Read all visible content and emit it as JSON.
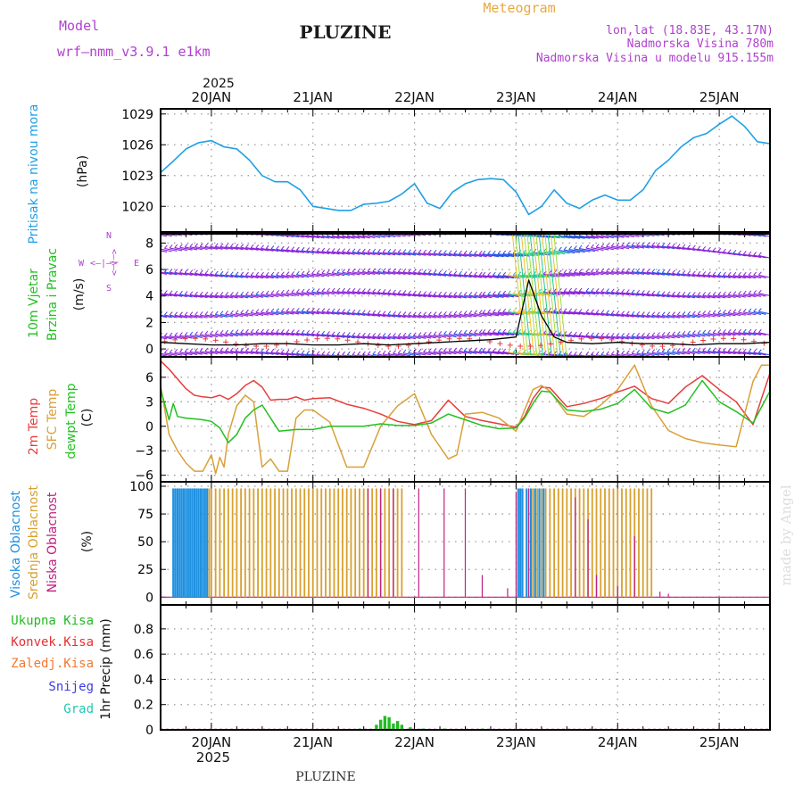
{
  "header": {
    "model_label": "Model",
    "model_name": "wrf–nmm_v3.9.1 e1km",
    "station": "PLUZINE",
    "app_title": "Meteogram",
    "lonlat": "lon,lat (18.83E, 43.17N)",
    "altitude": "Nadmorska Visina 780m",
    "altitude_model": "Nadmorska Visina u modelu 915.155m"
  },
  "footer": {
    "station": "PLUZINE",
    "credit": "made by Angel"
  },
  "colors": {
    "pressure": "#1ea0e6",
    "temp": "#e83c3c",
    "sfc": "#d8a038",
    "dewpt": "#22c022",
    "wind_low": "#8a22d8",
    "wind_mid": "#2850e8",
    "wind_high": "#20c890",
    "cloud_high": "#1e90e0",
    "cloud_mid": "#d8a030",
    "cloud_low": "#c02080",
    "precip_total": "#22bb22",
    "precip_conv": "#e83030",
    "precip_frozen": "#f07830",
    "snow": "#3c3ce0",
    "hail": "#22c8b0"
  },
  "chart_data": [
    {
      "type": "line",
      "panel": "pressure",
      "ylabel_1": "Pritisak na nivou mora",
      "ylabel_2": "(hPa)",
      "ylim": [
        1017.5,
        1029.5
      ],
      "yticks": [
        1020,
        1023,
        1026,
        1029
      ],
      "grid": true,
      "top_axis": {
        "year": "2025",
        "labels": [
          "20JAN",
          "21JAN",
          "22JAN",
          "23JAN",
          "24JAN",
          "25JAN"
        ]
      },
      "series": [
        {
          "x": [
            0,
            3,
            6,
            9,
            12,
            15,
            18,
            21,
            24,
            27,
            30,
            33,
            36,
            39,
            42,
            45,
            48,
            51,
            54,
            57,
            60,
            63,
            66,
            69,
            72,
            75,
            78,
            81,
            84,
            87,
            90,
            93,
            96,
            99,
            102,
            105,
            108,
            111,
            114,
            117,
            120,
            123,
            126,
            129,
            132,
            135,
            138,
            141,
            144
          ],
          "values": [
            1023.3,
            1024.4,
            1025.6,
            1026.2,
            1026.4,
            1025.8,
            1025.6,
            1024.5,
            1023,
            1022.4,
            1022.4,
            1021.6,
            1020,
            1019.8,
            1019.6,
            1019.6,
            1020.2,
            1020.3,
            1020.5,
            1021.2,
            1022.2,
            1020.3,
            1019.8,
            1021.4,
            1022.2,
            1022.6,
            1022.7,
            1022.6,
            1021.4,
            1019.2,
            1020,
            1021.6,
            1020.3,
            1019.8,
            1020.6,
            1021.1,
            1020.6,
            1020.6,
            1021.6,
            1023.5,
            1024.5,
            1025.8,
            1026.7,
            1027.1,
            1028,
            1028.8,
            1027.8,
            1026.3,
            1026.1
          ]
        }
      ]
    },
    {
      "type": "line",
      "panel": "wind",
      "ylabel_1": "10m Vjetar",
      "ylabel_2": "Brzina i Pravac",
      "ylabel_3": "(m/s)",
      "direction_key": [
        "W",
        "<–|–>",
        "E",
        "N",
        "S"
      ],
      "ylim": [
        -0.6,
        8.7
      ],
      "yticks": [
        0,
        2,
        4,
        6,
        8
      ],
      "grid": true,
      "series": [
        {
          "name": "speed",
          "x": [
            0,
            6,
            12,
            18,
            24,
            30,
            36,
            42,
            48,
            54,
            60,
            66,
            72,
            78,
            84,
            87,
            90,
            93,
            96,
            102,
            108,
            114,
            120,
            126,
            132,
            138,
            144
          ],
          "values": [
            0.5,
            0.4,
            0.3,
            0.3,
            0.4,
            0.4,
            0.3,
            0.3,
            0.4,
            0.3,
            0.4,
            0.5,
            0.6,
            0.7,
            0.9,
            5.2,
            2.5,
            0.9,
            0.5,
            0.4,
            0.5,
            0.4,
            0.4,
            0.3,
            0.4,
            0.4,
            0.5
          ]
        }
      ]
    },
    {
      "type": "line",
      "panel": "temperature",
      "ylabel_1": "2m Temp",
      "ylabel_2": "SFC Temp",
      "ylabel_3": "dewpt Temp",
      "ylabel_4": "(C)",
      "ylim": [
        -6.8,
        8.5
      ],
      "yticks": [
        -6,
        -3,
        0,
        3,
        6
      ],
      "grid": true,
      "series": [
        {
          "name": "2m Temp",
          "x": [
            0,
            2,
            4,
            6,
            8,
            10,
            12,
            14,
            16,
            18,
            20,
            22,
            24,
            26,
            28,
            30,
            32,
            34,
            36,
            40,
            44,
            48,
            52,
            56,
            60,
            64,
            68,
            72,
            76,
            80,
            84,
            86,
            88,
            90,
            92,
            96,
            100,
            104,
            108,
            112,
            116,
            120,
            124,
            128,
            132,
            136,
            138,
            140,
            142,
            144
          ],
          "values": [
            8,
            7,
            5.8,
            4.6,
            3.8,
            3.6,
            3.5,
            3.8,
            3.3,
            4,
            5,
            5.6,
            4.8,
            3.2,
            3.3,
            3.3,
            3.6,
            3.2,
            3.4,
            3.5,
            2.7,
            2.2,
            1.5,
            0.6,
            0.2,
            0.7,
            3.2,
            1.2,
            0.7,
            0.3,
            -0.1,
            1.2,
            3.4,
            4.8,
            4.7,
            2.4,
            2.8,
            3.4,
            4.2,
            4.9,
            3.4,
            2.8,
            4.8,
            6.2,
            4.5,
            3,
            1.6,
            0.2,
            3.4,
            6.5
          ]
        },
        {
          "name": "SFC Temp",
          "x": [
            0,
            2,
            4,
            6,
            8,
            10,
            12,
            13,
            14,
            15,
            16,
            18,
            20,
            22,
            24,
            26,
            28,
            30,
            32,
            34,
            36,
            40,
            44,
            48,
            52,
            56,
            60,
            64,
            68,
            70,
            72,
            76,
            80,
            84,
            86,
            88,
            90,
            92,
            96,
            100,
            104,
            108,
            112,
            116,
            120,
            124,
            128,
            132,
            136,
            140,
            142,
            144
          ],
          "values": [
            5,
            -1,
            -3,
            -4.5,
            -5.5,
            -5.5,
            -3.5,
            -5.8,
            -3.8,
            -5,
            -1,
            2.5,
            3.8,
            3,
            -5,
            -4,
            -5.5,
            -5.5,
            1,
            2,
            2,
            0.5,
            -5,
            -5,
            0,
            2.5,
            4,
            -1,
            -4,
            -3.5,
            1.5,
            1.7,
            1,
            -0.6,
            2,
            4.5,
            5,
            4.3,
            1.5,
            1.2,
            2.6,
            4.5,
            7.5,
            2.5,
            -0.5,
            -1.5,
            -2,
            -2.3,
            -2.5,
            5.5,
            7.5,
            7.5
          ]
        },
        {
          "name": "dewpt Temp",
          "x": [
            0,
            2,
            3,
            4,
            6,
            8,
            10,
            12,
            14,
            16,
            18,
            20,
            22,
            24,
            28,
            32,
            36,
            40,
            44,
            48,
            52,
            56,
            60,
            64,
            68,
            72,
            76,
            80,
            84,
            86,
            88,
            90,
            92,
            96,
            100,
            104,
            108,
            112,
            116,
            120,
            124,
            128,
            132,
            136,
            140,
            144
          ],
          "values": [
            4.5,
            0.8,
            2.8,
            1.2,
            1,
            0.9,
            0.8,
            0.6,
            -0.2,
            -2,
            -1,
            1,
            2,
            2.6,
            -0.6,
            -0.4,
            -0.4,
            0,
            0,
            0,
            0.3,
            0.1,
            0.1,
            0.4,
            1.5,
            0.8,
            0.1,
            -0.3,
            -0.2,
            1,
            2.8,
            4.3,
            4.2,
            2,
            1.8,
            2.1,
            2.8,
            4.5,
            2.2,
            1.6,
            2.6,
            5.6,
            3,
            1.8,
            0.4,
            4.3
          ]
        }
      ]
    },
    {
      "type": "bar",
      "panel": "clouds",
      "ylabel_1": "Visoka Oblacnost",
      "ylabel_2": "Srednja Oblacnost",
      "ylabel_3": "Niska Oblacnost",
      "ylabel_4": "(%)",
      "ylim": [
        -7,
        104
      ],
      "yticks": [
        0,
        25,
        50,
        75,
        100
      ],
      "grid": true,
      "series": [
        {
          "name": "Visoka Oblacnost",
          "x": [
            3,
            3.5,
            4,
            4.5,
            5,
            5.5,
            6,
            6.5,
            7,
            7.5,
            8,
            8.5,
            9,
            9.5,
            10,
            10.5,
            11,
            84.5,
            85,
            85.5,
            86.5,
            87.5,
            88.5,
            89.5,
            90.5
          ],
          "values": [
            98,
            98,
            98,
            98,
            98,
            98,
            98,
            98,
            98,
            98,
            98,
            98,
            98,
            98,
            98,
            98,
            98,
            98,
            98,
            98,
            98,
            98,
            98,
            98,
            98
          ]
        },
        {
          "name": "Srednja Oblacnost",
          "x": [
            11.5,
            12,
            13,
            14,
            15,
            16,
            17,
            18,
            19,
            20,
            21,
            22,
            23,
            24,
            25,
            26,
            27,
            28,
            29,
            30,
            31,
            32,
            33,
            34,
            35,
            36,
            37,
            38,
            39,
            40,
            41,
            42,
            43,
            44,
            45,
            46,
            47,
            48,
            49,
            50,
            51,
            52,
            53,
            54,
            55,
            56,
            57,
            88,
            89,
            90,
            91,
            92,
            93,
            94,
            95,
            96,
            97,
            98,
            99,
            100,
            101,
            102,
            103,
            104,
            105,
            106,
            107,
            108,
            109,
            110,
            111,
            112,
            113,
            114,
            115,
            116
          ],
          "values": [
            98,
            98,
            98,
            98,
            98,
            98,
            98,
            98,
            98,
            98,
            98,
            98,
            98,
            98,
            98,
            98,
            98,
            98,
            98,
            98,
            98,
            98,
            98,
            98,
            98,
            98,
            98,
            98,
            98,
            98,
            98,
            98,
            98,
            98,
            98,
            98,
            98,
            98,
            98,
            98,
            98,
            98,
            98,
            98,
            98,
            98,
            98,
            98,
            98,
            98,
            98,
            98,
            98,
            98,
            98,
            98,
            98,
            98,
            98,
            98,
            98,
            98,
            98,
            98,
            98,
            98,
            98,
            98,
            98,
            98,
            98,
            98,
            98,
            98,
            98,
            98
          ]
        },
        {
          "name": "Niska Oblacnost",
          "x": [
            49,
            52,
            55,
            61,
            67,
            72,
            76,
            82,
            84,
            87,
            98,
            101,
            103,
            108,
            112,
            118,
            120
          ],
          "values": [
            98,
            98,
            98,
            98,
            98,
            98,
            20,
            8,
            95,
            98,
            90,
            70,
            20,
            10,
            55,
            5,
            3
          ]
        }
      ]
    },
    {
      "type": "bar",
      "panel": "precip",
      "ylabel_1": "1hr Precip (mm)",
      "legend": [
        "Ukupna Kisa",
        "Konvek.Kisa",
        "Zaledj.Kisa",
        "Snijeg",
        "Grad"
      ],
      "ylim": [
        0,
        0.99
      ],
      "yticks": [
        0,
        0.2,
        0.4,
        0.6,
        0.8
      ],
      "grid": true,
      "bottom_axis": {
        "year": "2025",
        "labels": [
          "20JAN",
          "21JAN",
          "22JAN",
          "23JAN",
          "24JAN",
          "25JAN"
        ]
      },
      "series": [
        {
          "name": "Ukupna Kisa",
          "x": [
            47,
            51,
            52,
            53,
            54,
            55,
            56,
            57,
            59,
            62,
            67,
            76
          ],
          "values": [
            0.01,
            0.04,
            0.08,
            0.11,
            0.1,
            0.05,
            0.07,
            0.04,
            0.02,
            0.01,
            0.01,
            0.01
          ]
        }
      ]
    }
  ]
}
